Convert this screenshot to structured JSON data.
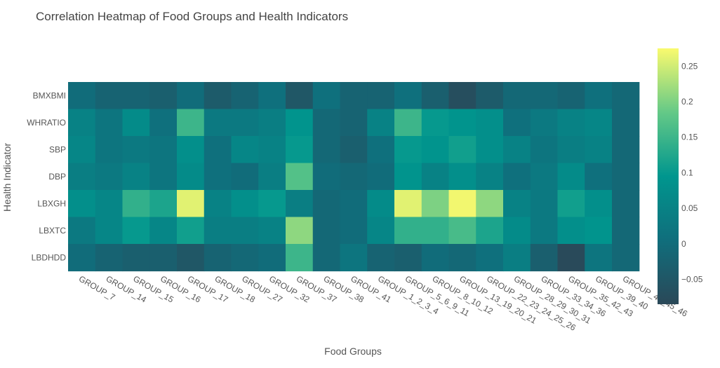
{
  "chart_data": {
    "type": "heatmap",
    "title": "Correlation Heatmap of Food Groups and Health Indicators",
    "xlabel": "Food Groups",
    "ylabel": "Health Indicator",
    "x_categories": [
      "GROUP_7",
      "GROUP_14",
      "GROUP_15",
      "GROUP_16",
      "GROUP_17",
      "GROUP_18",
      "GROUP_27",
      "GROUP_32",
      "GROUP_37",
      "GROUP_38",
      "GROUP_41",
      "GROUP_1_2_3_4",
      "GROUP_5_6_9_11",
      "GROUP_8_10_12",
      "GROUP_13_19_20_21",
      "GROUP_22_23_24_25_26",
      "GROUP_28_29_30_31",
      "GROUP_33_34_36",
      "GROUP_35_42_43",
      "GROUP_39_40",
      "GROUP_44_45_46"
    ],
    "y_categories": [
      "BMXBMI",
      "WHRATIO",
      "SBP",
      "DBP",
      "LBXGH",
      "LBXTC",
      "LBDHDD"
    ],
    "z": [
      [
        0.0,
        -0.02,
        -0.02,
        -0.03,
        0.0,
        -0.04,
        -0.02,
        0.01,
        -0.05,
        0.01,
        -0.02,
        -0.02,
        0.01,
        -0.03,
        -0.07,
        -0.04,
        -0.01,
        -0.01,
        -0.02,
        0.01,
        -0.01
      ],
      [
        0.05,
        0.02,
        0.07,
        0.01,
        0.15,
        0.03,
        0.03,
        0.04,
        0.09,
        -0.01,
        -0.02,
        0.05,
        0.15,
        0.1,
        0.09,
        0.08,
        0.01,
        0.03,
        0.05,
        0.06,
        -0.01
      ],
      [
        0.06,
        0.02,
        0.03,
        0.02,
        0.08,
        0.01,
        0.06,
        0.05,
        0.1,
        -0.01,
        -0.03,
        0.01,
        0.1,
        0.09,
        0.11,
        0.08,
        0.05,
        0.02,
        0.04,
        0.05,
        -0.01
      ],
      [
        0.04,
        0.03,
        0.05,
        0.02,
        0.07,
        0.01,
        0.0,
        0.04,
        0.17,
        0.0,
        -0.01,
        0.0,
        0.09,
        0.05,
        0.08,
        0.05,
        0.01,
        0.03,
        0.07,
        0.01,
        -0.01
      ],
      [
        0.08,
        0.06,
        0.14,
        0.12,
        0.26,
        0.05,
        0.08,
        0.1,
        0.04,
        -0.01,
        0.0,
        0.07,
        0.26,
        0.2,
        0.27,
        0.21,
        0.05,
        0.03,
        0.11,
        0.08,
        -0.01
      ],
      [
        0.03,
        0.06,
        0.1,
        0.06,
        0.11,
        0.04,
        0.04,
        0.05,
        0.21,
        -0.01,
        0.0,
        0.06,
        0.14,
        0.14,
        0.16,
        0.12,
        0.07,
        0.03,
        0.08,
        0.09,
        -0.01
      ],
      [
        0.0,
        -0.02,
        -0.03,
        -0.03,
        -0.05,
        -0.02,
        -0.01,
        0.0,
        0.15,
        -0.01,
        0.02,
        -0.02,
        -0.03,
        0.0,
        -0.01,
        0.01,
        0.04,
        -0.03,
        -0.08,
        0.02,
        -0.01
      ]
    ],
    "colorbar": {
      "min": -0.085,
      "max": 0.275,
      "ticks": [
        -0.05,
        0,
        0.05,
        0.1,
        0.15,
        0.2,
        0.25
      ],
      "tick_labels": [
        "−0.05",
        "0",
        "0.05",
        "0.1",
        "0.15",
        "0.2",
        "0.25"
      ]
    },
    "colorscale": "viridis"
  }
}
